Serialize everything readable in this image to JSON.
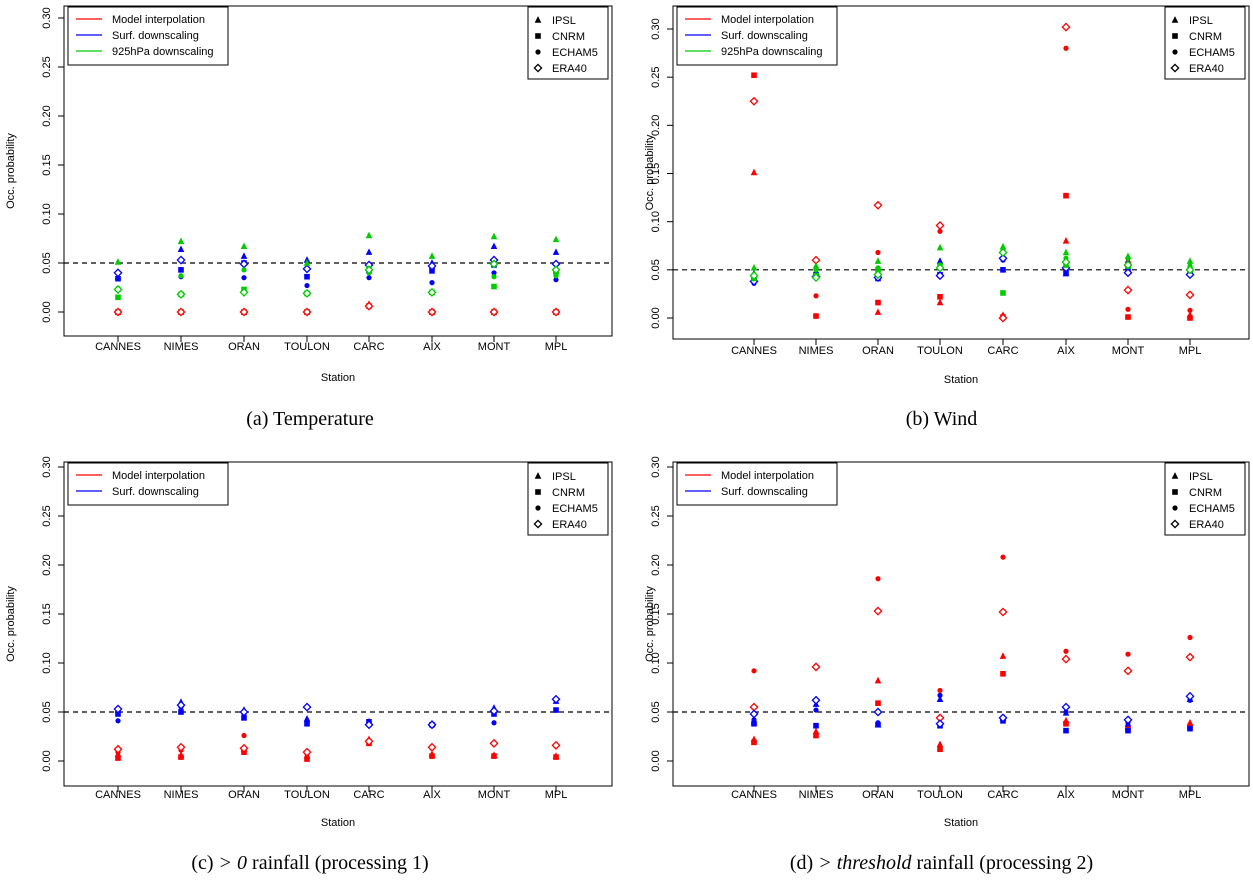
{
  "colors": {
    "model": "#ff0000",
    "surf": "#0000ff",
    "hpa": "#00cc00",
    "axis": "#000000"
  },
  "chart_data": [
    {
      "type": "scatter",
      "caption": {
        "prefix": "(a) Temperature",
        "math": "",
        "suffix": ""
      },
      "xlabel": "Station",
      "ylabel": "Occ. probability",
      "ylim": [
        0,
        0.3
      ],
      "yticks": [
        "0.00",
        "0.05",
        "0.10",
        "0.15",
        "0.20",
        "0.25",
        "0.30"
      ],
      "reference_line": 0.05,
      "categories": [
        "CANNES",
        "NIMES",
        "ORAN",
        "TOULON",
        "CARC",
        "AIX",
        "MONT",
        "MPL"
      ],
      "legend_methods": [
        "Model interpolation",
        "Surf. downscaling",
        "925hPa downscaling"
      ],
      "legend_models": [
        "IPSL",
        "CNRM",
        "ECHAM5",
        "ERA40"
      ],
      "series": [
        {
          "name": "Model interpolation",
          "values": {
            "IPSL": [
              0.0,
              0.0,
              0.0,
              0.0,
              0.008,
              0.0,
              0.0,
              0.0
            ],
            "CNRM": [
              0.0,
              0.0,
              0.0,
              0.0,
              0.006,
              0.0,
              0.0,
              0.0
            ],
            "ECHAM5": [
              0.0,
              0.0,
              0.0,
              0.0,
              0.007,
              0.0,
              0.0,
              0.0
            ],
            "ERA40": [
              0.0,
              0.0,
              0.0,
              0.0,
              0.006,
              0.0,
              0.0,
              0.0
            ]
          }
        },
        {
          "name": "Surf. downscaling",
          "values": {
            "IPSL": [
              0.036,
              0.064,
              0.057,
              0.053,
              0.061,
              0.05,
              0.067,
              0.061
            ],
            "CNRM": [
              0.034,
              0.043,
              0.05,
              0.036,
              0.042,
              0.042,
              0.048,
              0.042
            ],
            "ECHAM5": [
              0.024,
              0.036,
              0.035,
              0.027,
              0.035,
              0.03,
              0.04,
              0.033
            ],
            "ERA40": [
              0.04,
              0.053,
              0.049,
              0.044,
              0.048,
              0.047,
              0.053,
              0.049
            ]
          }
        },
        {
          "name": "925hPa downscaling",
          "values": {
            "IPSL": [
              0.051,
              0.072,
              0.067,
              0.05,
              0.078,
              0.057,
              0.077,
              0.074
            ],
            "CNRM": [
              0.015,
              0.018,
              0.023,
              0.019,
              0.044,
              0.02,
              0.026,
              0.041
            ],
            "ECHAM5": [
              0.024,
              0.037,
              0.043,
              0.019,
              0.04,
              0.02,
              0.036,
              0.037
            ],
            "ERA40": [
              0.023,
              0.018,
              0.02,
              0.019,
              0.043,
              0.02,
              0.049,
              0.043
            ]
          }
        }
      ]
    },
    {
      "type": "scatter",
      "caption": {
        "prefix": "(b) Wind",
        "math": "",
        "suffix": ""
      },
      "xlabel": "Station",
      "ylabel": "Occ. probability",
      "ylim": [
        0,
        0.3
      ],
      "yticks": [
        "0.00",
        "0.05",
        "0.10",
        "0.15",
        "0.20",
        "0.25",
        "0.30"
      ],
      "reference_line": 0.05,
      "categories": [
        "CANNES",
        "NIMES",
        "ORAN",
        "TOULON",
        "CARC",
        "AIX",
        "MONT",
        "MPL"
      ],
      "legend_methods": [
        "Model interpolation",
        "Surf. downscaling",
        "925hPa downscaling"
      ],
      "legend_models": [
        "IPSL",
        "CNRM",
        "ECHAM5",
        "ERA40"
      ],
      "series": [
        {
          "name": "Model interpolation",
          "values": {
            "IPSL": [
              0.151,
              0.045,
              0.006,
              0.016,
              0.003,
              0.08,
              0.06,
              0.003
            ],
            "CNRM": [
              0.252,
              0.002,
              0.016,
              0.022,
              0.001,
              0.127,
              0.001,
              0.0
            ],
            "ECHAM5": [
              0.045,
              0.023,
              0.068,
              0.09,
              0.001,
              0.28,
              0.009,
              0.008
            ],
            "ERA40": [
              0.225,
              0.06,
              0.117,
              0.096,
              0.0,
              0.302,
              0.029,
              0.024
            ]
          }
        },
        {
          "name": "Surf. downscaling",
          "values": {
            "IPSL": [
              0.046,
              0.048,
              0.045,
              0.059,
              0.063,
              0.046,
              0.058,
              0.048
            ],
            "CNRM": [
              0.04,
              0.045,
              0.041,
              0.045,
              0.05,
              0.047,
              0.052,
              0.046
            ],
            "ECHAM5": [
              0.036,
              0.046,
              0.042,
              0.045,
              0.06,
              0.053,
              0.048,
              0.045
            ],
            "ERA40": [
              0.038,
              0.043,
              0.042,
              0.044,
              0.062,
              0.052,
              0.047,
              0.045
            ]
          }
        },
        {
          "name": "925hPa downscaling",
          "values": {
            "IPSL": [
              0.052,
              0.054,
              0.059,
              0.073,
              0.074,
              0.068,
              0.064,
              0.059
            ],
            "CNRM": [
              0.041,
              0.044,
              0.05,
              0.054,
              0.026,
              0.055,
              0.054,
              0.05
            ],
            "ECHAM5": [
              0.045,
              0.05,
              0.052,
              0.055,
              0.07,
              0.062,
              0.062,
              0.054
            ],
            "ERA40": [
              0.044,
              0.042,
              0.045,
              0.052,
              0.068,
              0.058,
              0.055,
              0.05
            ]
          }
        }
      ]
    },
    {
      "type": "scatter",
      "caption": {
        "prefix": "(c) ",
        "math": "> 0",
        "suffix": " rainfall (processing 1)"
      },
      "xlabel": "Station",
      "ylabel": "Occ. probability",
      "ylim": [
        0,
        0.3
      ],
      "yticks": [
        "0.00",
        "0.05",
        "0.10",
        "0.15",
        "0.20",
        "0.25",
        "0.30"
      ],
      "reference_line": 0.05,
      "categories": [
        "CANNES",
        "NIMES",
        "ORAN",
        "TOULON",
        "CARC",
        "AIX",
        "MONT",
        "MPL"
      ],
      "legend_methods": [
        "Model interpolation",
        "Surf. downscaling"
      ],
      "legend_models": [
        "IPSL",
        "CNRM",
        "ECHAM5",
        "ERA40"
      ],
      "series": [
        {
          "name": "Model interpolation",
          "values": {
            "IPSL": [
              0.007,
              0.006,
              0.012,
              0.005,
              0.022,
              0.007,
              0.006,
              0.005
            ],
            "CNRM": [
              0.003,
              0.004,
              0.009,
              0.002,
              0.018,
              0.005,
              0.005,
              0.004
            ],
            "ECHAM5": [
              0.009,
              0.011,
              0.026,
              0.007,
              0.021,
              0.013,
              0.018,
              0.016
            ],
            "ERA40": [
              0.012,
              0.014,
              0.013,
              0.009,
              0.02,
              0.014,
              0.018,
              0.016
            ]
          }
        },
        {
          "name": "Surf. downscaling",
          "values": {
            "IPSL": [
              0.052,
              0.06,
              0.052,
              0.043,
              0.04,
              0.038,
              0.054,
              0.061
            ],
            "CNRM": [
              0.048,
              0.05,
              0.044,
              0.038,
              0.04,
              0.037,
              0.048,
              0.052
            ],
            "ECHAM5": [
              0.041,
              0.055,
              0.048,
              0.04,
              0.039,
              0.036,
              0.039,
              0.062
            ],
            "ERA40": [
              0.053,
              0.057,
              0.05,
              0.055,
              0.037,
              0.037,
              0.051,
              0.063
            ]
          }
        }
      ]
    },
    {
      "type": "scatter",
      "caption": {
        "prefix": "(d) ",
        "math": "> threshold",
        "suffix": " rainfall (processing 2)"
      },
      "xlabel": "Station",
      "ylabel": "Occ. probability",
      "ylim": [
        0,
        0.3
      ],
      "yticks": [
        "0.00",
        "0.05",
        "0.10",
        "0.15",
        "0.20",
        "0.25",
        "0.30"
      ],
      "reference_line": 0.05,
      "categories": [
        "CANNES",
        "NIMES",
        "ORAN",
        "TOULON",
        "CARC",
        "AIX",
        "MONT",
        "MPL"
      ],
      "legend_methods": [
        "Model interpolation",
        "Surf. downscaling"
      ],
      "legend_models": [
        "IPSL",
        "CNRM",
        "ECHAM5",
        "ERA40"
      ],
      "series": [
        {
          "name": "Model interpolation",
          "values": {
            "IPSL": [
              0.022,
              0.03,
              0.082,
              0.017,
              0.107,
              0.041,
              0.035,
              0.039
            ],
            "CNRM": [
              0.019,
              0.026,
              0.059,
              0.012,
              0.089,
              0.038,
              0.033,
              0.035
            ],
            "ECHAM5": [
              0.092,
              0.097,
              0.186,
              0.072,
              0.208,
              0.112,
              0.109,
              0.126
            ],
            "ERA40": [
              0.055,
              0.096,
              0.153,
              0.044,
              0.152,
              0.104,
              0.092,
              0.106
            ]
          }
        },
        {
          "name": "Surf. downscaling",
          "values": {
            "IPSL": [
              0.04,
              0.058,
              0.037,
              0.063,
              0.044,
              0.049,
              0.038,
              0.063
            ],
            "CNRM": [
              0.038,
              0.036,
              0.037,
              0.036,
              0.041,
              0.031,
              0.031,
              0.033
            ],
            "ECHAM5": [
              0.042,
              0.052,
              0.039,
              0.067,
              0.045,
              0.05,
              0.039,
              0.062
            ],
            "ERA40": [
              0.048,
              0.062,
              0.05,
              0.038,
              0.044,
              0.055,
              0.042,
              0.066
            ]
          }
        }
      ]
    }
  ]
}
